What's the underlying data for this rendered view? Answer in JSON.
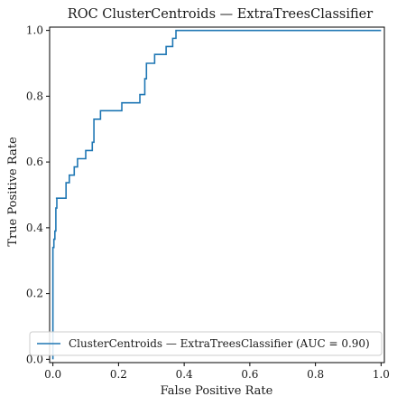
{
  "chart_data": {
    "type": "line",
    "title": "ROC ClusterCentroids — ExtraTreesClassifier",
    "xlabel": "False Positive Rate",
    "ylabel": "True Positive Rate",
    "xlim": [
      -0.01,
      1.01
    ],
    "ylim": [
      -0.01,
      1.01
    ],
    "xticks": [
      "0.0",
      "0.2",
      "0.4",
      "0.6",
      "0.8",
      "1.0"
    ],
    "yticks": [
      "0.0",
      "0.2",
      "0.4",
      "0.6",
      "0.8",
      "1.0"
    ],
    "grid": false,
    "legend": "lower-right",
    "series": [
      {
        "name": "ClusterCentroids — ExtraTreesClassifier (AUC = 0.90)",
        "color": "#1f77b4",
        "x": [
          0.0,
          0.0,
          0.003,
          0.003,
          0.006,
          0.006,
          0.009,
          0.009,
          0.012,
          0.012,
          0.009,
          0.009,
          0.012,
          0.012,
          0.04,
          0.04,
          0.05,
          0.05,
          0.065,
          0.065,
          0.075,
          0.075,
          0.08,
          0.08,
          0.1,
          0.1,
          0.12,
          0.12,
          0.125,
          0.125,
          0.145,
          0.145,
          0.21,
          0.21,
          0.265,
          0.265,
          0.28,
          0.28,
          0.285,
          0.285,
          0.295,
          0.295,
          0.31,
          0.31,
          0.345,
          0.345,
          0.365,
          0.365,
          0.375,
          0.375,
          1.0
        ],
        "y": [
          0.0,
          0.34,
          0.34,
          0.365,
          0.365,
          0.39,
          0.39,
          0.46,
          0.46,
          0.49,
          0.49,
          0.49,
          0.49,
          0.49,
          0.49,
          0.537,
          0.537,
          0.56,
          0.56,
          0.585,
          0.585,
          0.61,
          0.61,
          0.61,
          0.61,
          0.635,
          0.635,
          0.66,
          0.66,
          0.73,
          0.73,
          0.756,
          0.756,
          0.78,
          0.78,
          0.805,
          0.805,
          0.853,
          0.853,
          0.9,
          0.9,
          0.9,
          0.9,
          0.927,
          0.927,
          0.951,
          0.951,
          0.976,
          0.976,
          1.0,
          1.0
        ]
      }
    ]
  }
}
